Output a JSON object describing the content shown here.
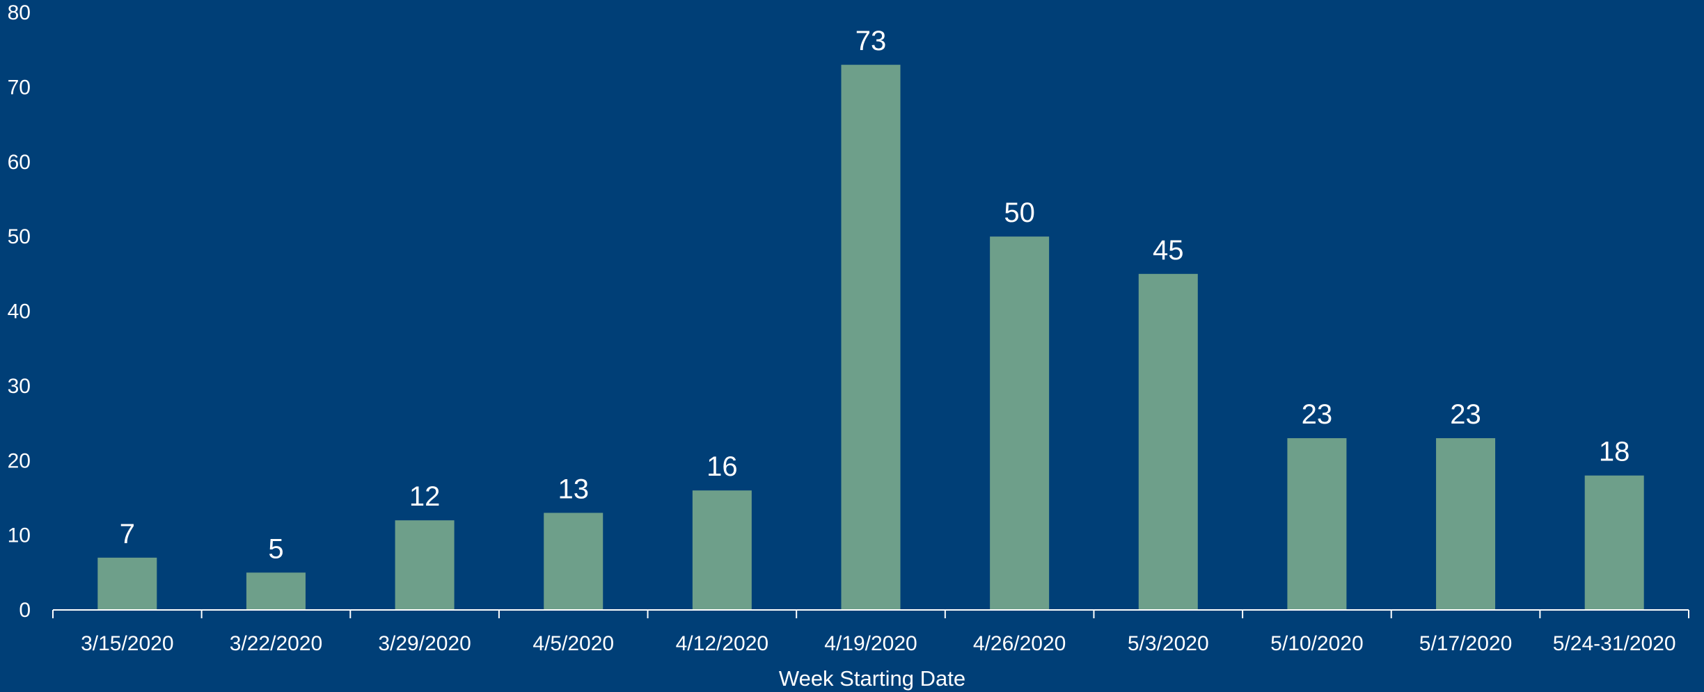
{
  "colors": {
    "background": "#003f77",
    "bar": "#6e9f8a",
    "text": "#ffffff",
    "axis": "#ffffff"
  },
  "chart_data": {
    "type": "bar",
    "title": "",
    "xlabel": "Week Starting Date",
    "ylabel": "",
    "categories": [
      "3/15/2020",
      "3/22/2020",
      "3/29/2020",
      "4/5/2020",
      "4/12/2020",
      "4/19/2020",
      "4/26/2020",
      "5/3/2020",
      "5/10/2020",
      "5/17/2020",
      "5/24-31/2020"
    ],
    "values": [
      7,
      5,
      12,
      13,
      16,
      73,
      50,
      45,
      23,
      23,
      18
    ],
    "ylim": [
      0,
      80
    ],
    "yticks": [
      0,
      10,
      20,
      30,
      40,
      50,
      60,
      70,
      80
    ],
    "grid": false,
    "legend": "none",
    "data_labels": true
  }
}
